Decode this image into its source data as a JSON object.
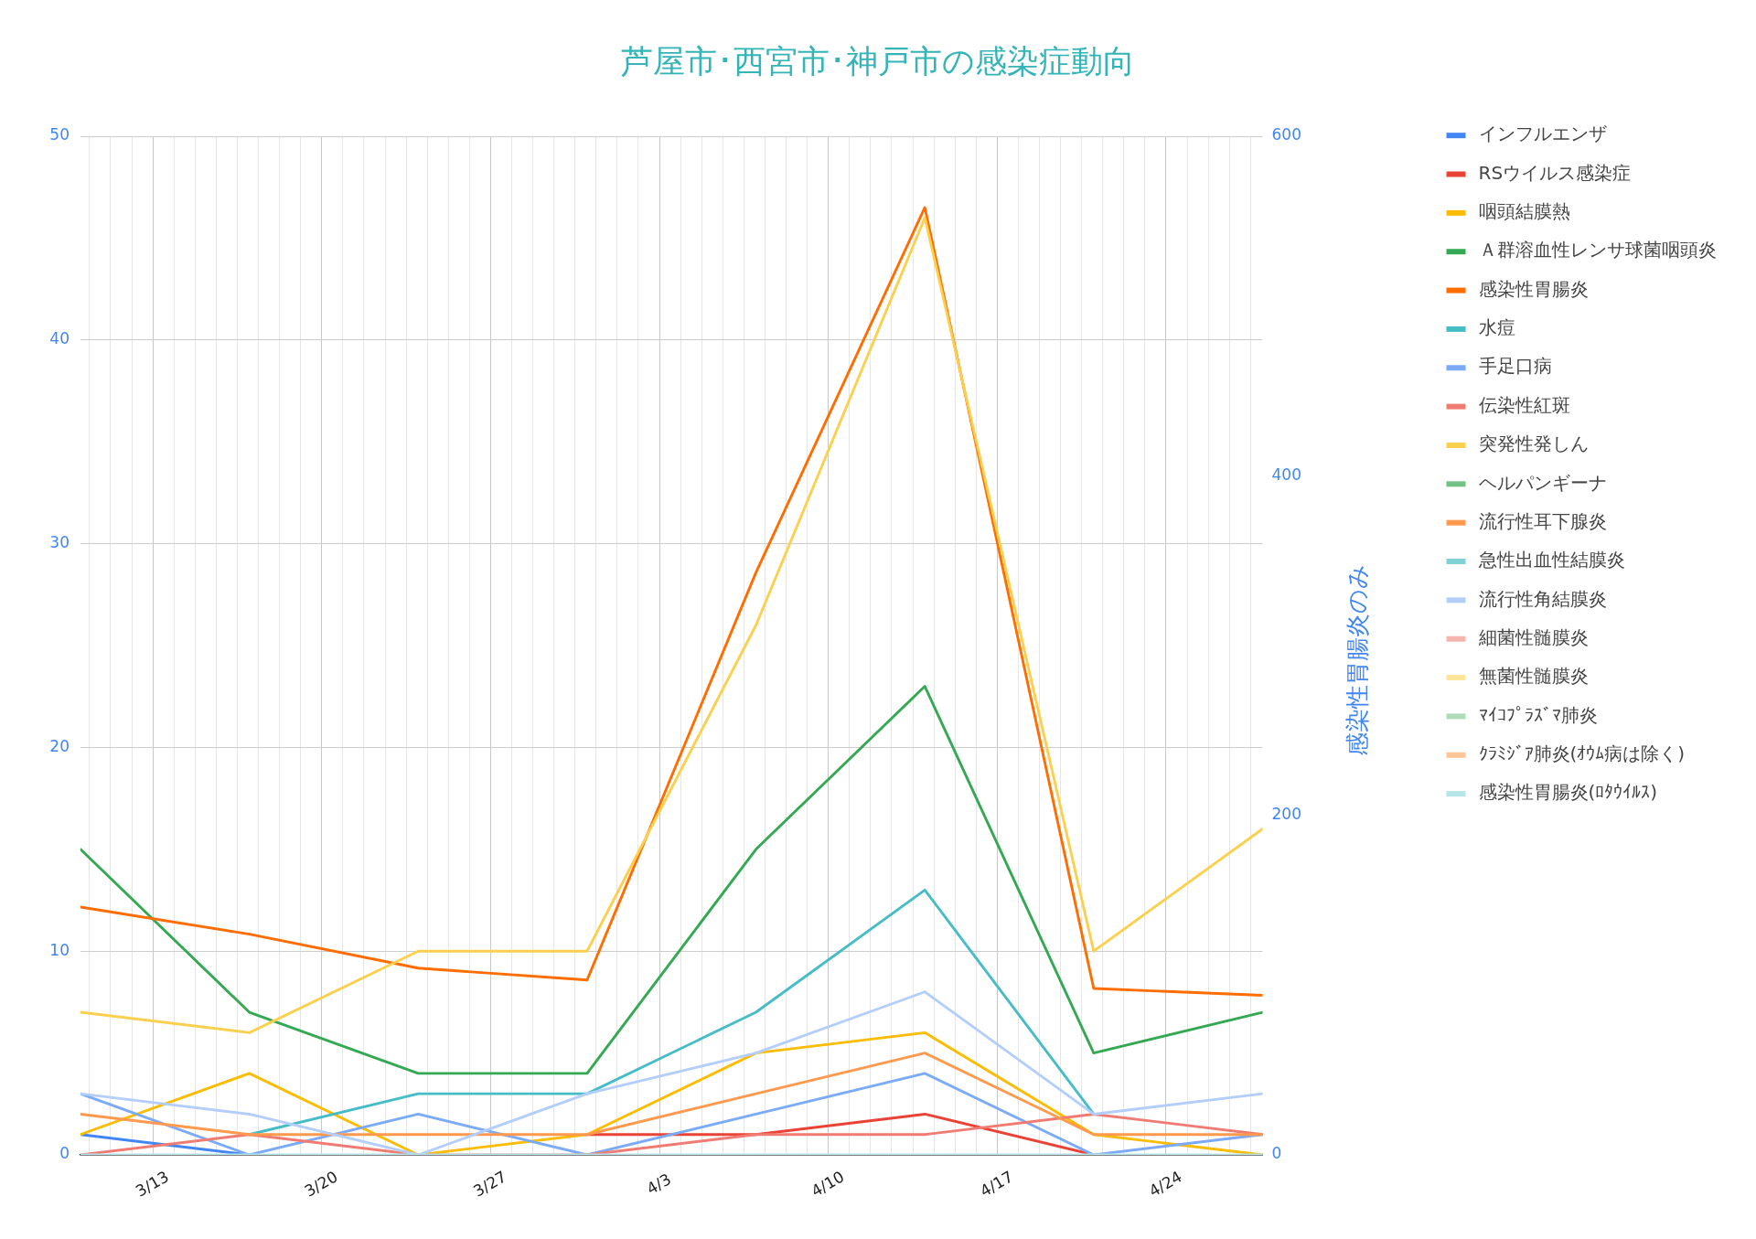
{
  "chart_data": {
    "type": "line",
    "title": "芦屋市･西宮市･神戸市の感染症動向",
    "y2label": "感染性胃腸炎のみ",
    "x": [
      "--03-10",
      "--03-17",
      "--03-24",
      "--03-31",
      "--04-07",
      "--04-14",
      "--04-21",
      "--04-28"
    ],
    "xlim": [
      "--03-10",
      "--04-28"
    ],
    "xticks": [
      {
        "value": "--03-10T09:00",
        "label": null
      },
      {
        "value": "--03-11T06:00",
        "label": null
      },
      {
        "value": "--03-12T03:00",
        "label": null
      },
      {
        "value": "--03-13",
        "label": "3/13"
      },
      {
        "value": "--03-13T21:00",
        "label": null
      },
      {
        "value": "--03-14T18:00",
        "label": null
      },
      {
        "value": "--03-15T15:00",
        "label": null
      },
      {
        "value": "--03-16T12:00",
        "label": null
      },
      {
        "value": "--03-17T09:00",
        "label": null
      },
      {
        "value": "--03-18T06:00",
        "label": null
      },
      {
        "value": "--03-19T03:00",
        "label": null
      },
      {
        "value": "--03-20",
        "label": "3/20"
      },
      {
        "value": "--03-20T21:00",
        "label": null
      },
      {
        "value": "--03-21T18:00",
        "label": null
      },
      {
        "value": "--03-22T15:00",
        "label": null
      },
      {
        "value": "--03-23T12:00",
        "label": null
      },
      {
        "value": "--03-24T09:00",
        "label": null
      },
      {
        "value": "--03-25T06:00",
        "label": null
      },
      {
        "value": "--03-26T03:00",
        "label": null
      },
      {
        "value": "--03-27",
        "label": "3/27"
      },
      {
        "value": "--03-27T21:00",
        "label": null
      },
      {
        "value": "--03-28T18:00",
        "label": null
      },
      {
        "value": "--03-29T15:00",
        "label": null
      },
      {
        "value": "--03-30T12:00",
        "label": null
      },
      {
        "value": "--03-31T09:00",
        "label": null
      },
      {
        "value": "--04-01T06:00",
        "label": null
      },
      {
        "value": "--04-02T03:00",
        "label": null
      },
      {
        "value": "--04-03",
        "label": "4/3"
      },
      {
        "value": "--04-03T21:00",
        "label": null
      },
      {
        "value": "--04-04T18:00",
        "label": null
      },
      {
        "value": "--04-05T15:00",
        "label": null
      },
      {
        "value": "--04-06T12:00",
        "label": null
      },
      {
        "value": "--04-07T09:00",
        "label": null
      },
      {
        "value": "--04-08T06:00",
        "label": null
      },
      {
        "value": "--04-09T03:00",
        "label": null
      },
      {
        "value": "--04-10",
        "label": "4/10"
      },
      {
        "value": "--04-10T21:00",
        "label": null
      },
      {
        "value": "--04-11T18:00",
        "label": null
      },
      {
        "value": "--04-12T15:00",
        "label": null
      },
      {
        "value": "--04-13T12:00",
        "label": null
      },
      {
        "value": "--04-14T09:00",
        "label": null
      },
      {
        "value": "--04-15T06:00",
        "label": null
      },
      {
        "value": "--04-16T03:00",
        "label": null
      },
      {
        "value": "--04-17",
        "label": "4/17"
      },
      {
        "value": "--04-17T21:00",
        "label": null
      },
      {
        "value": "--04-18T18:00",
        "label": null
      },
      {
        "value": "--04-19T15:00",
        "label": null
      },
      {
        "value": "--04-20T12:00",
        "label": null
      },
      {
        "value": "--04-21T09:00",
        "label": null
      },
      {
        "value": "--04-22T06:00",
        "label": null
      },
      {
        "value": "--04-23T03:00",
        "label": null
      },
      {
        "value": "--04-24",
        "label": "4/24"
      },
      {
        "value": "--04-24T21:00",
        "label": null
      },
      {
        "value": "--04-25T18:00",
        "label": null
      },
      {
        "value": "--04-26T15:00",
        "label": null
      },
      {
        "value": "--04-27T12:00",
        "label": null
      }
    ],
    "ylim": [
      0,
      50
    ],
    "yticks": [
      0,
      10,
      20,
      30,
      40,
      50
    ],
    "y2lim": [
      0,
      600
    ],
    "y2ticks": [
      0,
      200,
      400,
      600
    ],
    "grid": true,
    "legend": "top right",
    "marker": "none",
    "series": [
      {
        "name": "インフルエンザ",
        "color": "#4285f4",
        "values": [
          1,
          0,
          null,
          null,
          null,
          null,
          null,
          null
        ]
      },
      {
        "name": "RSウイルス感染症",
        "color": "#ea4335",
        "values": [
          null,
          null,
          null,
          1,
          1,
          2,
          0,
          null
        ]
      },
      {
        "name": "咽頭結膜熱",
        "color": "#fbbc04",
        "values": [
          1,
          4,
          0,
          1,
          5,
          6,
          1,
          0
        ]
      },
      {
        "name": "Ａ群溶血性レンサ球菌咽頭炎",
        "color": "#34a853",
        "values": [
          15,
          7,
          4,
          4,
          15,
          23,
          5,
          7
        ]
      },
      {
        "name": "感染性胃腸炎",
        "color": "#ff6d01",
        "axis": "y2",
        "values": [
          146,
          130,
          110,
          103,
          343,
          558,
          98,
          94
        ]
      },
      {
        "name": "水痘",
        "color": "#46bdc6",
        "values": [
          null,
          1,
          3,
          3,
          7,
          13,
          2,
          null
        ]
      },
      {
        "name": "手足口病",
        "color": "#7baaf7",
        "values": [
          3,
          0,
          2,
          0,
          2,
          4,
          0,
          1
        ]
      },
      {
        "name": "伝染性紅斑",
        "color": "#f07b72",
        "values": [
          0,
          1,
          0,
          0,
          1,
          1,
          2,
          1
        ]
      },
      {
        "name": "突発性発しん",
        "color": "#fcd04f",
        "values": [
          7,
          6,
          10,
          10,
          26,
          46,
          10,
          16
        ]
      },
      {
        "name": "ヘルパンギーナ",
        "color": "#71c287",
        "values": [
          null,
          null,
          null,
          null,
          null,
          null,
          null,
          null
        ]
      },
      {
        "name": "流行性耳下腺炎",
        "color": "#ff994d",
        "values": [
          2,
          1,
          1,
          1,
          3,
          5,
          1,
          1
        ]
      },
      {
        "name": "急性出血性結膜炎",
        "color": "#7ed1d7",
        "values": [
          null,
          null,
          null,
          null,
          null,
          null,
          null,
          null
        ]
      },
      {
        "name": "流行性角結膜炎",
        "color": "#b3cefb",
        "values": [
          3,
          2,
          0,
          3,
          5,
          8,
          2,
          3
        ]
      },
      {
        "name": "細菌性髄膜炎",
        "color": "#f7b4ae",
        "values": [
          null,
          null,
          null,
          null,
          null,
          null,
          null,
          null
        ]
      },
      {
        "name": "無菌性髄膜炎",
        "color": "#fde49b",
        "values": [
          null,
          null,
          null,
          null,
          null,
          null,
          null,
          null
        ]
      },
      {
        "name": "ﾏｲｺﾌﾟﾗｽﾞﾏ肺炎",
        "color": "#aedcba",
        "values": [
          null,
          null,
          null,
          null,
          null,
          null,
          null,
          null
        ]
      },
      {
        "name": "ｸﾗﾐｼﾞｱ肺炎(ｵｳﾑ病は除く)",
        "color": "#ffc599",
        "values": [
          null,
          null,
          null,
          null,
          null,
          null,
          null,
          null
        ]
      },
      {
        "name": "感染性胃腸炎(ﾛﾀｳｲﾙｽ)",
        "color": "#b5e5e8",
        "values": [
          0,
          0,
          0,
          0,
          0,
          0,
          0,
          0
        ]
      }
    ]
  }
}
